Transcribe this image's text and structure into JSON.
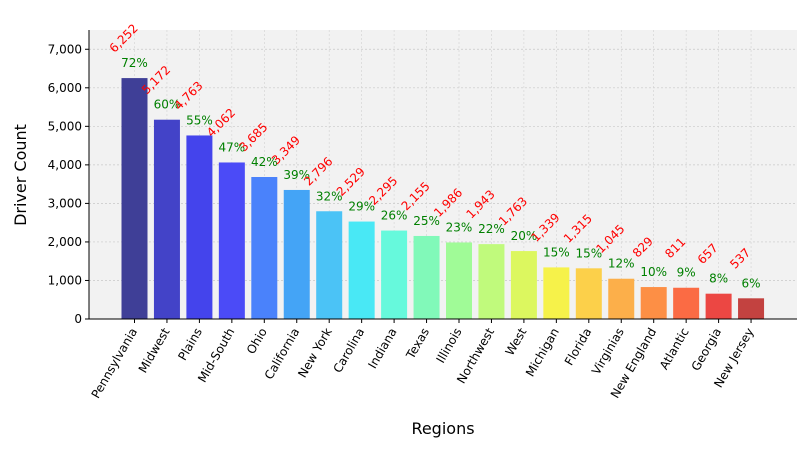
{
  "chart_data": {
    "type": "bar",
    "xlabel": "Regions",
    "ylabel": "Driver Count",
    "ylim": [
      0,
      7500
    ],
    "yticks": [
      0,
      1000,
      2000,
      3000,
      4000,
      5000,
      6000,
      7000
    ],
    "ytick_labels": [
      "0",
      "1,000",
      "2,000",
      "3,000",
      "4,000",
      "5,000",
      "6,000",
      "7,000"
    ],
    "grid": true,
    "categories": [
      "Pennsylvania",
      "Midwest",
      "Plains",
      "Mid-South",
      "Ohio",
      "California",
      "New York",
      "Carolina",
      "Indiana",
      "Texas",
      "Illinois",
      "Northwest",
      "West",
      "Michigan",
      "Florida",
      "Virginias",
      "New England",
      "Atlantic",
      "Georgia",
      "New Jersey"
    ],
    "values": [
      6252,
      5172,
      4763,
      4062,
      3685,
      3349,
      2796,
      2529,
      2295,
      2155,
      1986,
      1943,
      1763,
      1339,
      1315,
      1045,
      829,
      811,
      657,
      537
    ],
    "value_labels": [
      "6,252",
      "5,172",
      "4,763",
      "4,062",
      "3,685",
      "3,349",
      "2,796",
      "2,529",
      "2,295",
      "2,155",
      "1,986",
      "1,943",
      "1,763",
      "1,339",
      "1,315",
      "1,045",
      "829",
      "811",
      "657",
      "537"
    ],
    "percent_labels": [
      "72%",
      "60%",
      "55%",
      "47%",
      "42%",
      "39%",
      "32%",
      "29%",
      "26%",
      "25%",
      "23%",
      "22%",
      "20%",
      "15%",
      "15%",
      "12%",
      "10%",
      "9%",
      "8%",
      "6%"
    ],
    "colors": [
      "#3f3f97",
      "#4343c8",
      "#4444ec",
      "#4b4bf7",
      "#4a82fb",
      "#44a4f6",
      "#4bc3f6",
      "#49e8f5",
      "#66f9dc",
      "#81f9b9",
      "#a0fb97",
      "#c0fa7c",
      "#dcf75f",
      "#f6f24a",
      "#fcd04a",
      "#fcaf4a",
      "#fd8f45",
      "#fb6b44",
      "#ec4743",
      "#c34240"
    ],
    "value_label_color": "#ff0000",
    "percent_label_color": "#008000",
    "plot_background": "#f2f2f2"
  }
}
